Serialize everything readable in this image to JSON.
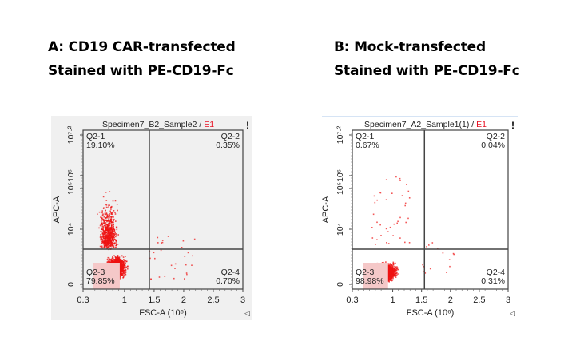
{
  "titles": {
    "a_line1": "A: CD19 CAR-transfected",
    "a_line2": "Stained with PE-CD19-Fc",
    "b_line1": "B: Mock-transfected",
    "b_line2": "Stained with PE-CD19-Fc"
  },
  "colors": {
    "dots": "#ee1111",
    "gate_fill": "#f5c8c8",
    "e1": "#e81123",
    "axis": "#333333"
  },
  "chart_data": [
    {
      "type": "scatter",
      "panel": "A",
      "title": "Specimen7_B2_Sample2",
      "title_suffix": "E1",
      "xlabel": "FSC-A (10⁶)",
      "ylabel": "APC-A",
      "x_ticks": [
        "0.3",
        "1",
        "1.5",
        "2",
        "2.5",
        "3"
      ],
      "x_tick_values": [
        0.3,
        1,
        1.5,
        2,
        2.5,
        3
      ],
      "y_ticks": [
        "0",
        "10⁴",
        "10⁵",
        "10⁶",
        "10⁷·²"
      ],
      "xlim": [
        0.3,
        3
      ],
      "quadrant_x": 1.42,
      "quadrant_y_label": "between 0 and 10^4",
      "quadrants": [
        {
          "name": "Q2-1",
          "percent": "19.10%",
          "position": "top-left"
        },
        {
          "name": "Q2-2",
          "percent": "0.35%",
          "position": "top-right"
        },
        {
          "name": "Q2-3",
          "percent": "79.85%",
          "position": "bottom-left"
        },
        {
          "name": "Q2-4",
          "percent": "0.70%",
          "position": "bottom-right"
        }
      ],
      "warning_mark": "!",
      "corner_mark": "◁"
    },
    {
      "type": "scatter",
      "panel": "B",
      "title": "Specimen7_A2_Sample1(1)",
      "title_suffix": "E1",
      "xlabel": "FSC-A (10⁶)",
      "ylabel": "APC-A",
      "x_ticks": [
        "0.3",
        "1",
        "1.5",
        "2",
        "2.5",
        "3"
      ],
      "x_tick_values": [
        0.3,
        1,
        1.5,
        2,
        2.5,
        3
      ],
      "y_ticks": [
        "0",
        "10⁴",
        "10⁵",
        "10⁶",
        "10⁷·²"
      ],
      "xlim": [
        0.3,
        3
      ],
      "quadrant_x": 1.55,
      "quadrant_y_label": "between 0 and 10^4",
      "quadrants": [
        {
          "name": "Q2-1",
          "percent": "0.67%",
          "position": "top-left"
        },
        {
          "name": "Q2-2",
          "percent": "0.04%",
          "position": "top-right"
        },
        {
          "name": "Q2-3",
          "percent": "98.98%",
          "position": "bottom-left"
        },
        {
          "name": "Q2-4",
          "percent": "0.31%",
          "position": "bottom-right"
        }
      ],
      "warning_mark": "!",
      "corner_mark": "◁"
    }
  ]
}
